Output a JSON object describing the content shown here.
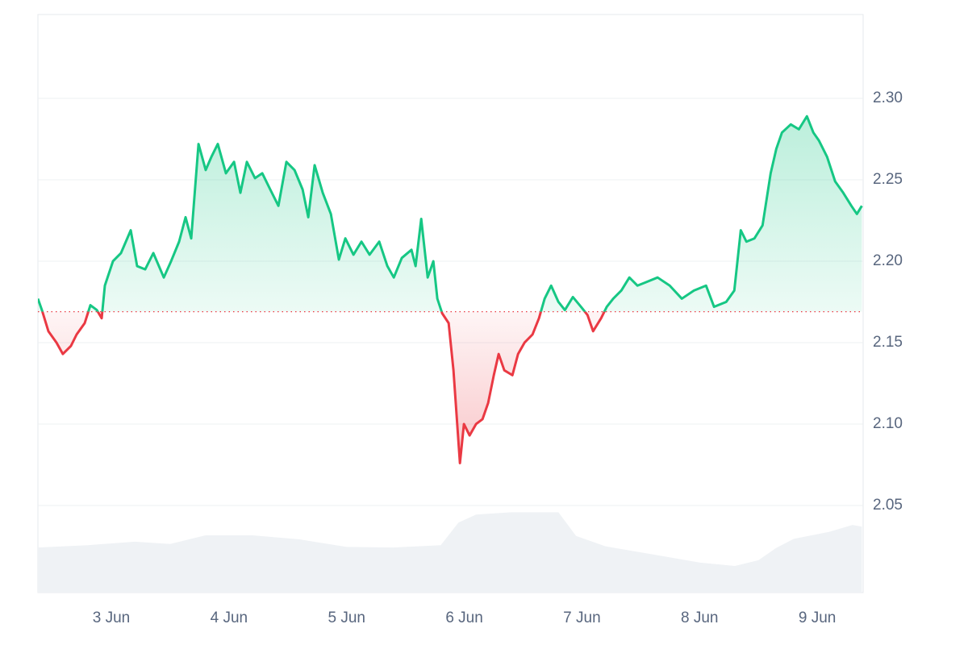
{
  "chart_data": {
    "type": "baseline-line",
    "xlim": [
      2.376,
      9.39
    ],
    "ylim": [
      1.9965,
      2.3515
    ],
    "y2lim": [
      0,
      100
    ],
    "xticks": [
      {
        "value": 3,
        "label": "3 Jun"
      },
      {
        "value": 4,
        "label": "4 Jun"
      },
      {
        "value": 5,
        "label": "5 Jun"
      },
      {
        "value": 6,
        "label": "6 Jun"
      },
      {
        "value": 7,
        "label": "7 Jun"
      },
      {
        "value": 8,
        "label": "8 Jun"
      },
      {
        "value": 9,
        "label": "9 Jun"
      }
    ],
    "yticks": [
      2.05,
      {
        "value": 2.1,
        "label": "2.10"
      },
      2.15,
      {
        "value": 2.2,
        "label": "2.20"
      },
      2.25,
      {
        "value": 2.3,
        "label": "2.30"
      }
    ],
    "grid": true,
    "baseline": 2.169,
    "up_color": "#16c784",
    "down_color": "#ea3943",
    "series": [
      {
        "x": [
          2.376,
          2.41,
          2.465,
          2.534,
          2.588,
          2.657,
          2.705,
          2.774,
          2.822,
          2.877,
          2.918,
          2.945,
          3.014,
          3.082,
          3.165,
          3.219,
          3.288,
          3.357,
          3.446,
          3.508,
          3.576,
          3.631,
          3.679,
          3.741,
          3.802,
          3.85,
          3.905,
          3.974,
          4.043,
          4.097,
          4.152,
          4.221,
          4.283,
          4.351,
          4.42,
          4.488,
          4.557,
          4.626,
          4.674,
          4.728,
          4.797,
          4.866,
          4.934,
          4.989,
          5.058,
          5.126,
          5.195,
          5.277,
          5.346,
          5.401,
          5.469,
          5.551,
          5.586,
          5.634,
          5.689,
          5.737,
          5.771,
          5.812,
          5.867,
          5.908,
          5.963,
          5.997,
          6.045,
          6.1,
          6.155,
          6.203,
          6.251,
          6.292,
          6.34,
          6.409,
          6.457,
          6.512,
          6.58,
          6.635,
          6.683,
          6.738,
          6.8,
          6.855,
          6.923,
          6.992,
          7.047,
          7.095,
          7.163,
          7.211,
          7.266,
          7.335,
          7.403,
          7.472,
          7.541,
          7.643,
          7.746,
          7.849,
          7.952,
          8.055,
          8.123,
          8.226,
          8.295,
          8.35,
          8.398,
          8.466,
          8.535,
          8.604,
          8.652,
          8.7,
          8.775,
          8.844,
          8.912,
          8.967,
          9.015,
          9.084,
          9.152,
          9.221,
          9.29,
          9.337,
          9.379
        ],
        "values": [
          2.177,
          2.17,
          2.157,
          2.15,
          2.143,
          2.148,
          2.155,
          2.162,
          2.173,
          2.17,
          2.165,
          2.185,
          2.2,
          2.205,
          2.219,
          2.197,
          2.195,
          2.205,
          2.19,
          2.2,
          2.212,
          2.227,
          2.214,
          2.272,
          2.256,
          2.264,
          2.272,
          2.254,
          2.261,
          2.242,
          2.261,
          2.251,
          2.254,
          2.244,
          2.234,
          2.261,
          2.256,
          2.244,
          2.227,
          2.259,
          2.242,
          2.229,
          2.201,
          2.214,
          2.204,
          2.212,
          2.204,
          2.212,
          2.197,
          2.19,
          2.202,
          2.207,
          2.197,
          2.226,
          2.19,
          2.2,
          2.177,
          2.168,
          2.162,
          2.133,
          2.076,
          2.1,
          2.093,
          2.1,
          2.103,
          2.113,
          2.13,
          2.143,
          2.133,
          2.13,
          2.143,
          2.15,
          2.155,
          2.165,
          2.177,
          2.185,
          2.175,
          2.17,
          2.178,
          2.172,
          2.167,
          2.157,
          2.165,
          2.172,
          2.177,
          2.182,
          2.19,
          2.185,
          2.187,
          2.19,
          2.185,
          2.177,
          2.182,
          2.185,
          2.172,
          2.175,
          2.182,
          2.219,
          2.212,
          2.214,
          2.222,
          2.254,
          2.269,
          2.279,
          2.284,
          2.281,
          2.289,
          2.279,
          2.274,
          2.264,
          2.249,
          2.242,
          2.234,
          2.229,
          2.234
        ]
      },
      {
        "axis": "y2",
        "color": "#eff2f5",
        "x": [
          2.376,
          2.8,
          3.2,
          3.5,
          3.8,
          4.2,
          4.6,
          5.0,
          5.4,
          5.8,
          5.95,
          6.1,
          6.4,
          6.8,
          6.95,
          7.2,
          7.6,
          8.0,
          8.3,
          8.5,
          8.65,
          8.8,
          9.1,
          9.3,
          9.379
        ],
        "values": [
          7.8,
          8.2,
          8.8,
          8.4,
          9.9,
          9.9,
          9.2,
          7.9,
          7.8,
          8.2,
          12.1,
          13.5,
          13.9,
          13.9,
          9.8,
          8.0,
          6.6,
          5.2,
          4.6,
          5.6,
          7.7,
          9.3,
          10.5,
          11.7,
          11.4
        ]
      }
    ]
  }
}
